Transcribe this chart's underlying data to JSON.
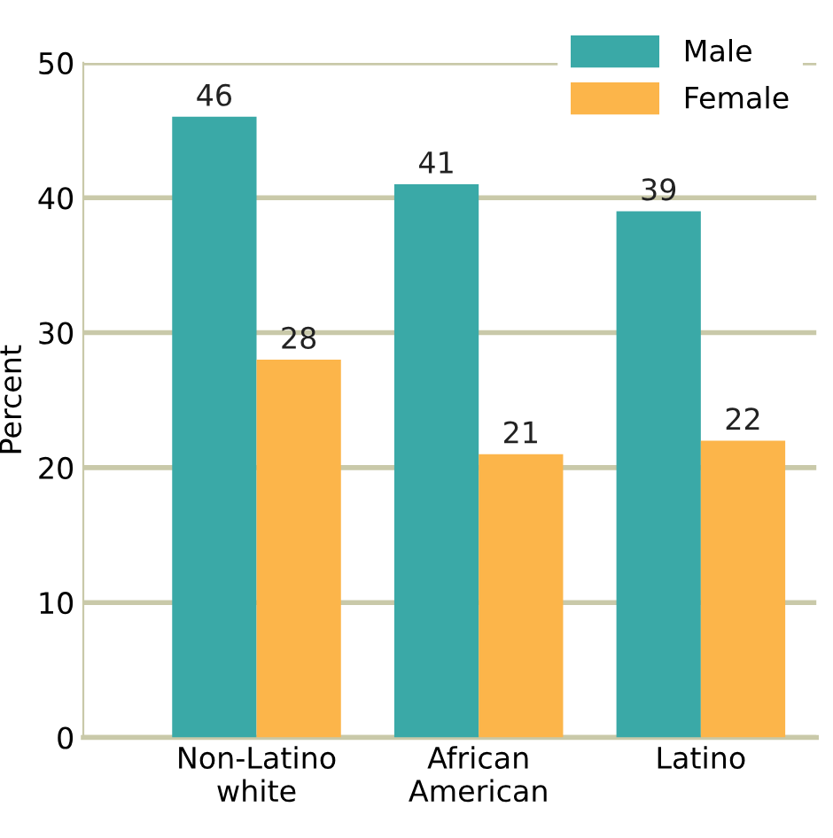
{
  "chart_data": {
    "type": "bar",
    "ylabel": "Percent",
    "categories": [
      "Non-Latino\nwhite",
      "African\nAmerican",
      "Latino"
    ],
    "series": [
      {
        "name": "Male",
        "color": "#3aa9a7",
        "values": [
          46,
          41,
          39
        ]
      },
      {
        "name": "Female",
        "color": "#fcb54a",
        "values": [
          28,
          21,
          22
        ]
      }
    ],
    "ylim": [
      0,
      50
    ],
    "yticks": [
      0,
      10,
      20,
      30,
      40,
      50
    ],
    "grid": "y",
    "legend": "top right",
    "data_labels": true
  }
}
